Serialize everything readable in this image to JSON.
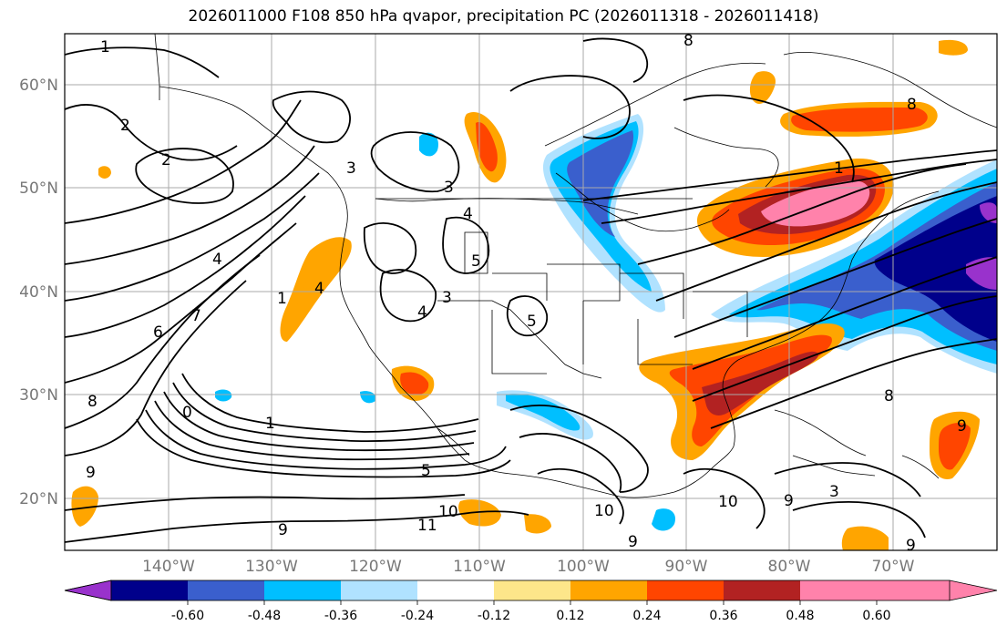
{
  "title": "2026011000 F108 850 hPa qvapor, precipitation PC (2026011318 - 2026011418)",
  "latitude_labels": [
    "60°N",
    "50°N",
    "40°N",
    "30°N",
    "20°N"
  ],
  "longitude_labels": [
    "140°W",
    "130°W",
    "120°W",
    "110°W",
    "100°W",
    "90°W",
    "80°W",
    "70°W"
  ],
  "colorbar": {
    "colors": [
      "#9932cc",
      "#00008b",
      "#3a5fcd",
      "#00bfff",
      "#b0e2ff",
      "#ffffff",
      "#fde68a",
      "#ffa500",
      "#ff4500",
      "#b22222",
      "#ff82ab"
    ],
    "labels": [
      "-0.60",
      "-0.48",
      "-0.36",
      "-0.24",
      "-0.12",
      "0.12",
      "0.24",
      "0.36",
      "0.48",
      "0.60"
    ]
  },
  "contour_labels": [
    "1",
    "2",
    "2",
    "3",
    "3",
    "4",
    "4",
    "5",
    "5",
    "3",
    "4",
    "1",
    "7",
    "6",
    "8",
    "0",
    "1",
    "9",
    "5",
    "9",
    "10",
    "11",
    "10",
    "9",
    "8",
    "8",
    "10",
    "9",
    "4",
    "1",
    "8",
    "9",
    "3",
    "9"
  ]
}
